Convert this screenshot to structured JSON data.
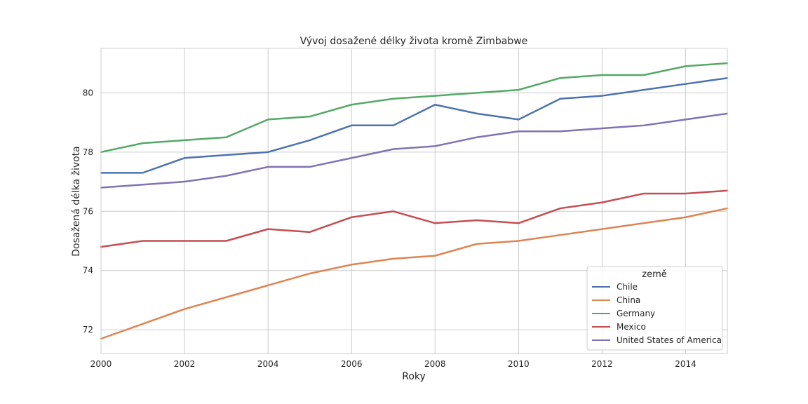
{
  "chart_data": {
    "type": "line",
    "title": "Vývoj dosažené délky života kromě Zimbabwe",
    "xlabel": "Roky",
    "ylabel": "Dosažená délka života",
    "xlim": [
      2000,
      2015
    ],
    "ylim": [
      71.2,
      81.5
    ],
    "xticks": [
      2000,
      2002,
      2004,
      2006,
      2008,
      2010,
      2012,
      2014
    ],
    "yticks": [
      72,
      74,
      76,
      78,
      80
    ],
    "grid": true,
    "legend": {
      "title": "země",
      "placement": "lower-right"
    },
    "x": [
      2000,
      2001,
      2002,
      2003,
      2004,
      2005,
      2006,
      2007,
      2008,
      2009,
      2010,
      2011,
      2012,
      2013,
      2014,
      2015
    ],
    "series": [
      {
        "name": "Chile",
        "color": "#4c72b0",
        "values": [
          77.3,
          77.3,
          77.8,
          77.9,
          78.0,
          78.4,
          78.9,
          78.9,
          79.6,
          79.3,
          79.1,
          79.8,
          79.9,
          80.1,
          80.3,
          80.5
        ]
      },
      {
        "name": "China",
        "color": "#dd8452",
        "values": [
          71.7,
          72.2,
          72.7,
          73.1,
          73.5,
          73.9,
          74.2,
          74.4,
          74.5,
          74.9,
          75.0,
          75.2,
          75.4,
          75.6,
          75.8,
          76.1
        ]
      },
      {
        "name": "Germany",
        "color": "#55a868",
        "values": [
          78.0,
          78.3,
          78.4,
          78.5,
          79.1,
          79.2,
          79.6,
          79.8,
          79.9,
          80.0,
          80.1,
          80.5,
          80.6,
          80.6,
          80.9,
          81.0
        ]
      },
      {
        "name": "Mexico",
        "color": "#c44e52",
        "values": [
          74.8,
          75.0,
          75.0,
          75.0,
          75.4,
          75.3,
          75.8,
          76.0,
          75.6,
          75.7,
          75.6,
          76.1,
          76.3,
          76.6,
          76.6,
          76.7
        ]
      },
      {
        "name": "United States of America",
        "color": "#8172b3",
        "values": [
          76.8,
          76.9,
          77.0,
          77.2,
          77.5,
          77.5,
          77.8,
          78.1,
          78.2,
          78.5,
          78.7,
          78.7,
          78.8,
          78.9,
          79.1,
          79.3
        ]
      }
    ]
  }
}
